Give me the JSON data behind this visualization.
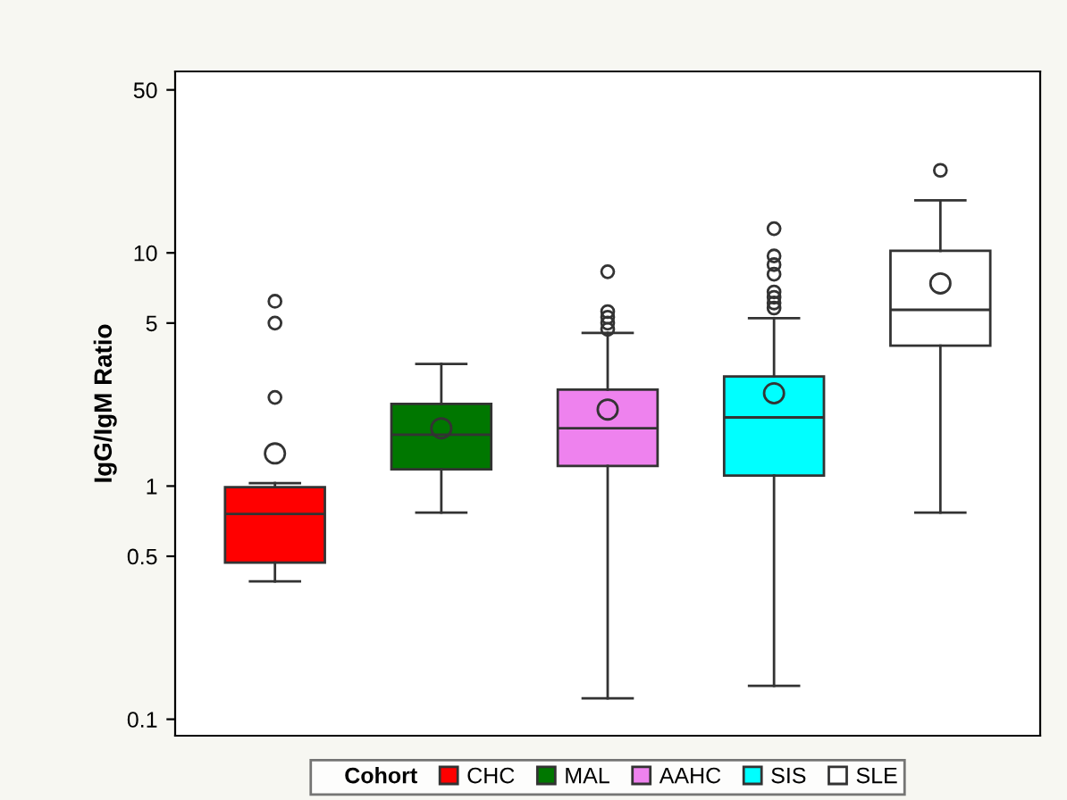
{
  "chart_data": {
    "type": "box",
    "ylabel": "IgG/IgM Ratio",
    "legend_title": "Cohort",
    "legend": "bottom",
    "log": true,
    "grid": false,
    "categories": [
      null,
      null,
      null,
      null,
      null
    ],
    "ylim": [
      0.085,
      60
    ],
    "yticks": [
      0.1,
      0.5,
      1,
      5,
      10,
      50
    ],
    "series": [
      {
        "name": "CHC",
        "color": "#ff0000",
        "boxes": [
          {
            "low": 0.39,
            "q1": 0.47,
            "median": 0.76,
            "q3": 0.99,
            "high": 1.03,
            "mean": 1.38,
            "outliers": [
              2.4,
              5.0,
              6.2
            ]
          },
          null,
          null,
          null,
          null
        ]
      },
      {
        "name": "MAL",
        "color": "#007700",
        "boxes": [
          null,
          {
            "low": 0.77,
            "q1": 1.18,
            "median": 1.66,
            "q3": 2.25,
            "high": 3.34,
            "mean": 1.77
          },
          null,
          null,
          null
        ]
      },
      {
        "name": "AAHC",
        "color": "#ee82ee",
        "boxes": [
          null,
          null,
          {
            "low": 0.123,
            "q1": 1.22,
            "median": 1.77,
            "q3": 2.59,
            "high": 4.54,
            "mean": 2.13,
            "outliers": [
              4.7,
              5.0,
              5.3,
              5.6,
              8.3
            ]
          },
          null,
          null
        ]
      },
      {
        "name": "SIS",
        "color": "#00ffff",
        "boxes": [
          null,
          null,
          null,
          {
            "low": 0.139,
            "q1": 1.11,
            "median": 1.97,
            "q3": 2.95,
            "high": 5.25,
            "mean": 2.5,
            "outliers": [
              5.8,
              6.1,
              6.45,
              6.8,
              8.1,
              8.9,
              9.7,
              12.7
            ]
          },
          null
        ]
      },
      {
        "name": "SLE",
        "color": "#ffffff",
        "boxes": [
          null,
          null,
          null,
          null,
          {
            "low": 0.77,
            "q1": 4.0,
            "median": 5.7,
            "q3": 10.2,
            "high": 16.8,
            "mean": 7.4,
            "outliers": [
              22.6
            ]
          }
        ]
      }
    ]
  }
}
